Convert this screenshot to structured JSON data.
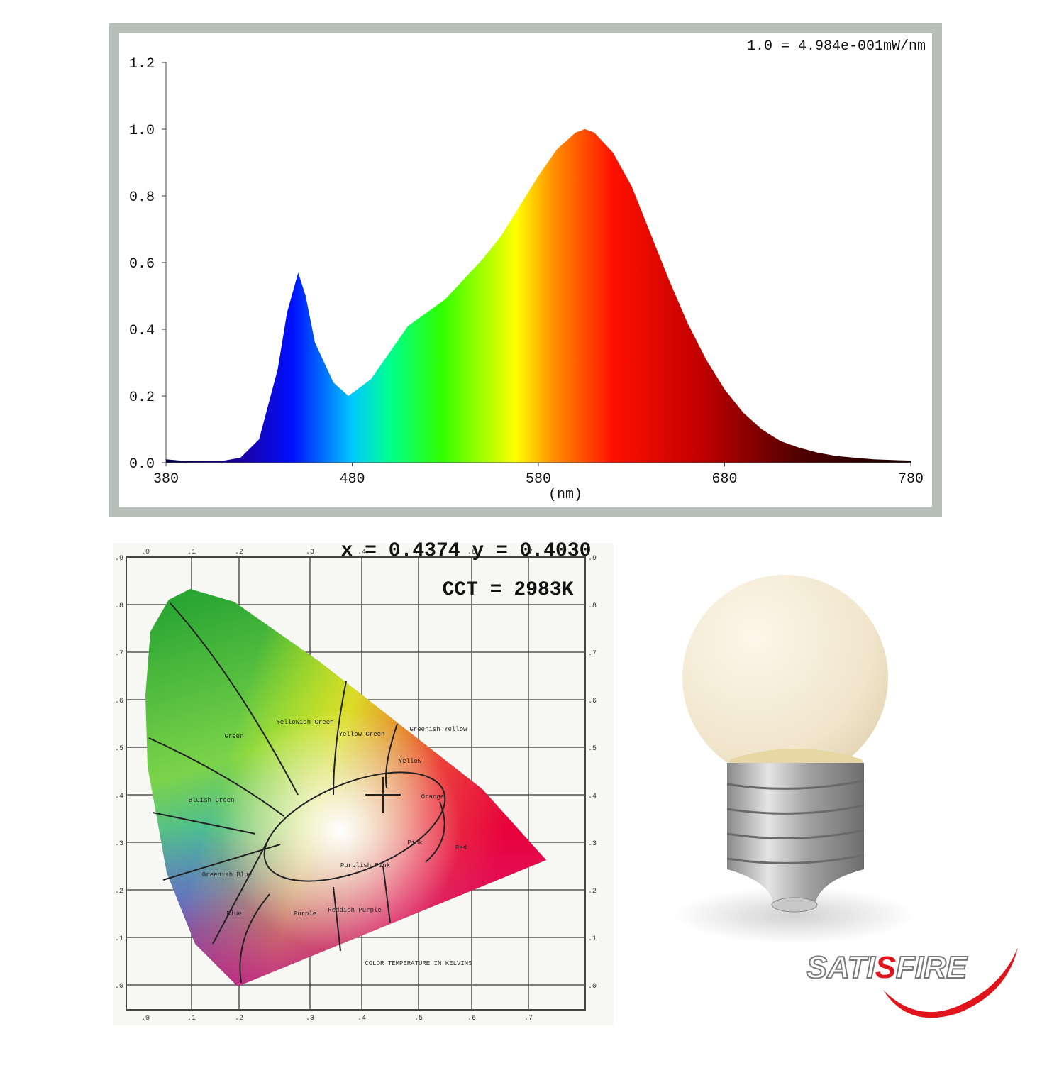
{
  "chart_data": {
    "type": "area",
    "annotation": "1.0 = 4.984e-001mW/nm",
    "x_label": "(nm)",
    "x": [
      380,
      390,
      400,
      410,
      420,
      430,
      440,
      445,
      451,
      455,
      460,
      470,
      478,
      490,
      500,
      510,
      520,
      530,
      540,
      550,
      560,
      570,
      580,
      590,
      600,
      605,
      610,
      620,
      630,
      640,
      650,
      660,
      670,
      680,
      690,
      700,
      710,
      720,
      730,
      740,
      750,
      760,
      770,
      780
    ],
    "series": [
      {
        "values": [
          0.01,
          0.005,
          0.005,
          0.005,
          0.015,
          0.07,
          0.28,
          0.45,
          0.57,
          0.5,
          0.36,
          0.24,
          0.2,
          0.25,
          0.33,
          0.41,
          0.45,
          0.49,
          0.55,
          0.61,
          0.68,
          0.77,
          0.86,
          0.94,
          0.99,
          1.0,
          0.99,
          0.93,
          0.83,
          0.69,
          0.55,
          0.42,
          0.31,
          0.22,
          0.15,
          0.1,
          0.065,
          0.045,
          0.03,
          0.02,
          0.015,
          0.01,
          0.008,
          0.006
        ]
      }
    ],
    "xlim": [
      380,
      780
    ],
    "xticks": [
      380,
      480,
      580,
      680,
      780
    ],
    "ylim": [
      0,
      1.2
    ],
    "yticks": [
      {
        "value": 0,
        "label": "0.0"
      },
      0.2,
      0.4,
      0.6,
      0.8,
      {
        "value": 1,
        "label": "1.0"
      },
      1.2
    ]
  },
  "cie": {
    "chromaticity": "x = 0.4374 y = 0.4030",
    "cct": "CCT = 2983K",
    "x_labels": [
      ".0",
      ".1",
      ".2",
      ".3",
      ".4",
      ".5",
      ".6",
      ".7"
    ],
    "y_labels": [
      ".9",
      ".8",
      ".7",
      ".6",
      ".5",
      ".4",
      ".3",
      ".2",
      ".1",
      ".0"
    ],
    "regions": [
      "Green",
      "Yellowish Green",
      "Yellow Green",
      "Greenish Yellow",
      "Yellow",
      "Orange",
      "Pink",
      "Red",
      "Purple",
      "Blue",
      "Bluish Green",
      "Greenish Blue",
      "Purplish Pink",
      "Reddish Purple"
    ],
    "footer": "COLOR TEMPERATURE IN KELVINS"
  },
  "logo": {
    "parts": [
      "SATI",
      "S",
      "FIRE"
    ]
  }
}
